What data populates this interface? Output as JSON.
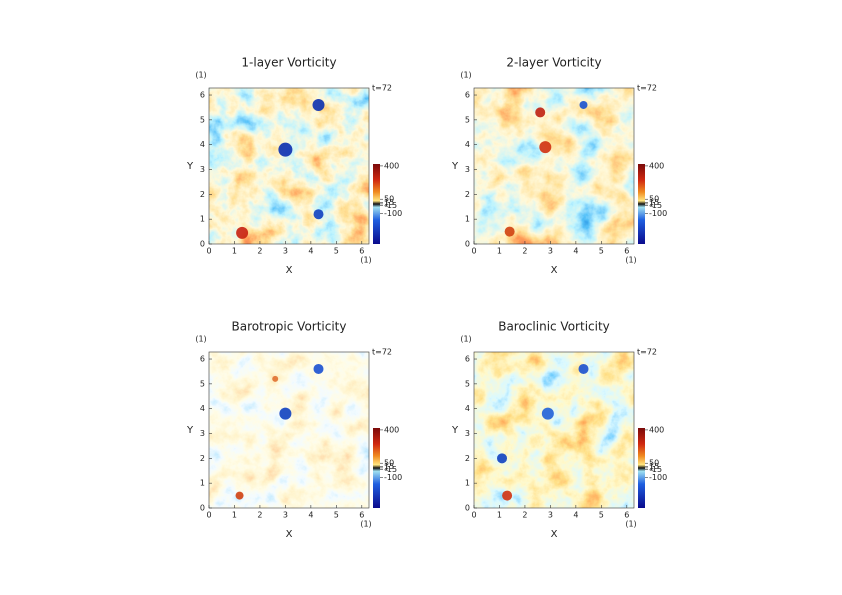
{
  "chart_data": [
    {
      "type": "heatmap",
      "title": "1-layer Vorticity",
      "xlabel": "X",
      "ylabel": "Y",
      "x_unit": "(1)",
      "y_unit": "(1)",
      "annotation": "t=72",
      "xlim": [
        0,
        6.283
      ],
      "ylim": [
        0,
        6.283
      ],
      "xticks": [
        0,
        1,
        2,
        3,
        4,
        5,
        6
      ],
      "yticks": [
        0,
        1,
        2,
        3,
        4,
        5,
        6
      ],
      "clim": [
        -420,
        420
      ],
      "cticks": [
        400,
        50,
        15,
        1,
        -15,
        -100
      ]
    },
    {
      "type": "heatmap",
      "title": "2-layer Vorticity",
      "xlabel": "X",
      "ylabel": "Y",
      "x_unit": "(1)",
      "y_unit": "(1)",
      "annotation": "t=72",
      "xlim": [
        0,
        6.283
      ],
      "ylim": [
        0,
        6.283
      ],
      "xticks": [
        0,
        1,
        2,
        3,
        4,
        5,
        6
      ],
      "yticks": [
        0,
        1,
        2,
        3,
        4,
        5,
        6
      ],
      "clim": [
        -420,
        420
      ],
      "cticks": [
        400,
        50,
        15,
        1,
        -15,
        -100
      ]
    },
    {
      "type": "heatmap",
      "title": "Barotropic Vorticity",
      "xlabel": "X",
      "ylabel": "Y",
      "x_unit": "(1)",
      "y_unit": "(1)",
      "annotation": "t=72",
      "xlim": [
        0,
        6.283
      ],
      "ylim": [
        0,
        6.283
      ],
      "xticks": [
        0,
        1,
        2,
        3,
        4,
        5,
        6
      ],
      "yticks": [
        0,
        1,
        2,
        3,
        4,
        5,
        6
      ],
      "clim": [
        -420,
        420
      ],
      "cticks": [
        400,
        50,
        15,
        1,
        -15,
        -100
      ]
    },
    {
      "type": "heatmap",
      "title": "Baroclinic Vorticity",
      "xlabel": "X",
      "ylabel": "Y",
      "x_unit": "(1)",
      "y_unit": "(1)",
      "annotation": "t=72",
      "xlim": [
        0,
        6.283
      ],
      "ylim": [
        0,
        6.283
      ],
      "xticks": [
        0,
        1,
        2,
        3,
        4,
        5,
        6
      ],
      "yticks": [
        0,
        1,
        2,
        3,
        4,
        5,
        6
      ],
      "clim": [
        -420,
        420
      ],
      "cticks": [
        400,
        50,
        15,
        1,
        -15,
        -100
      ]
    }
  ]
}
